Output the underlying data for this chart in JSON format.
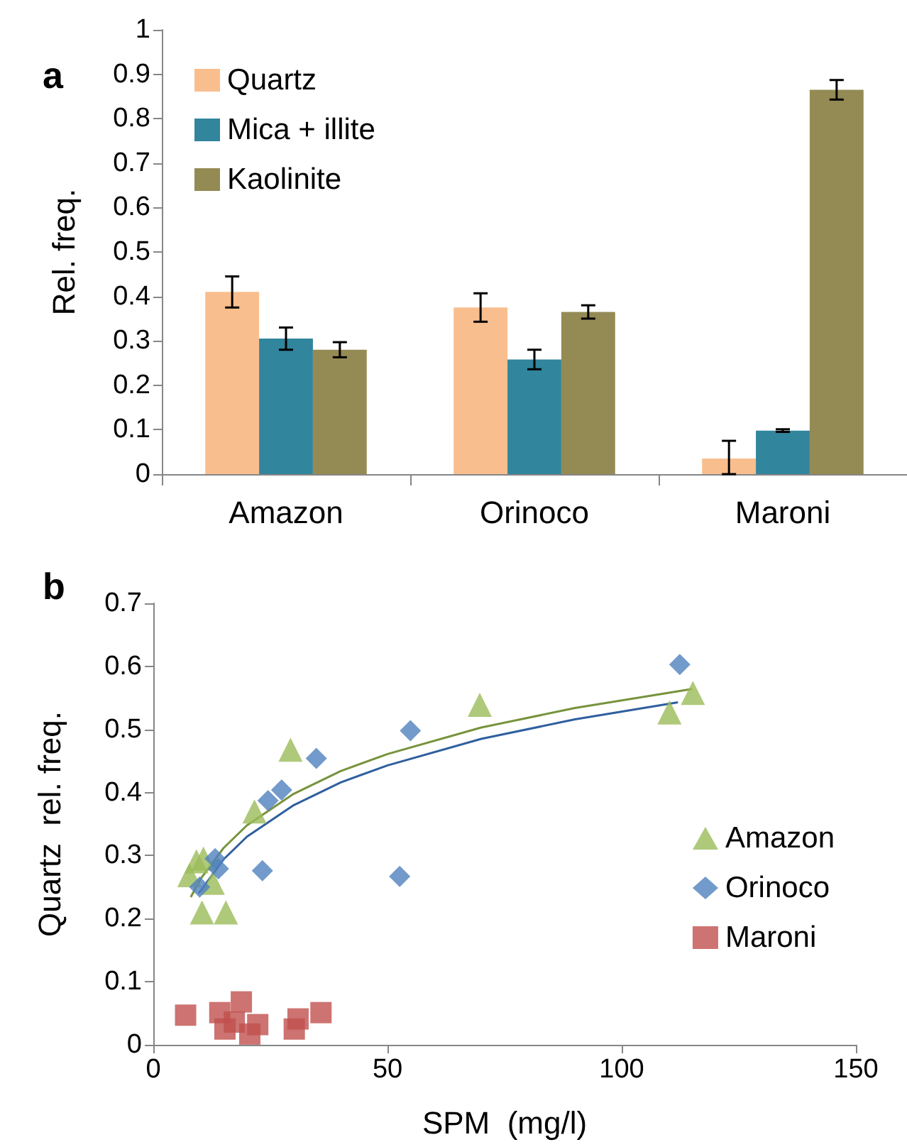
{
  "chart_data": [
    {
      "type": "bar",
      "annotations": [
        "a"
      ],
      "ylabel": "Rel. freq.",
      "categories": [
        "Amazon",
        "Orinoco",
        "Maroni"
      ],
      "ylim": [
        0,
        1
      ],
      "yticks": [
        0,
        0.1,
        0.2,
        0.3,
        0.4,
        0.5,
        0.6,
        0.7,
        0.8,
        0.9,
        1
      ],
      "grid": false,
      "legend": "top left",
      "series": [
        {
          "name": "Quartz",
          "color": "#f9be8d",
          "values": [
            0.41,
            0.375,
            0.035
          ],
          "errors": [
            0.035,
            0.032,
            [
              0,
              0.075
            ]
          ]
        },
        {
          "name": "Mica + illite",
          "color": "#31859c",
          "values": [
            0.305,
            0.258,
            0.098
          ],
          "errors": [
            0.025,
            0.022,
            0.003
          ]
        },
        {
          "name": "Kaolinite",
          "color": "#948a54",
          "values": [
            0.28,
            0.365,
            0.865
          ],
          "errors": [
            0.017,
            0.015,
            0.022
          ]
        }
      ]
    },
    {
      "type": "scatter",
      "annotations": [
        "b"
      ],
      "xlabel": "SPM  (mg/l)",
      "ylabel": "Quartz  rel. freq.",
      "xlim": [
        0,
        150
      ],
      "xticks": [
        0,
        50,
        100,
        150
      ],
      "ylim": [
        0,
        0.7
      ],
      "yticks": [
        0,
        0.1,
        0.2,
        0.3,
        0.4,
        0.5,
        0.6,
        0.7
      ],
      "grid": false,
      "legend": "bottom right",
      "series": [
        {
          "name": "Amazon",
          "color": "#9bbb59",
          "marker": "triangle",
          "x": [
            7.7,
            9.2,
            10.7,
            12.7,
            10.4,
            15.5,
            21.6,
            29.3,
            69.7,
            110.2,
            115.2
          ],
          "values": [
            0.269,
            0.291,
            0.295,
            0.257,
            0.21,
            0.21,
            0.37,
            0.468,
            0.539,
            0.527,
            0.558
          ]
        },
        {
          "name": "Orinoco",
          "color": "#4f81bd",
          "marker": "diamond",
          "x": [
            9.9,
            13.2,
            13.9,
            23.3,
            24.5,
            27.4,
            34.8,
            52.6,
            54.9,
            112.4
          ],
          "values": [
            0.25,
            0.295,
            0.279,
            0.276,
            0.387,
            0.404,
            0.454,
            0.267,
            0.498,
            0.603
          ]
        },
        {
          "name": "Maroni",
          "color": "#c0504d",
          "marker": "square",
          "x": [
            6.9,
            14.2,
            18.8,
            15.3,
            17.3,
            20.6,
            22.3,
            30.1,
            30.9,
            35.8
          ],
          "values": [
            0.047,
            0.051,
            0.068,
            0.025,
            0.036,
            0.017,
            0.032,
            0.025,
            0.041,
            0.051
          ]
        },
        {
          "type": "line",
          "color": "#77933c",
          "marker": "none",
          "x": [
            8,
            10,
            15,
            20,
            30,
            40,
            50,
            70,
            90,
            115
          ],
          "values": [
            0.234,
            0.262,
            0.312,
            0.348,
            0.398,
            0.434,
            0.461,
            0.503,
            0.534,
            0.564
          ]
        },
        {
          "type": "line",
          "color": "#2e5f9e",
          "marker": "none",
          "x": [
            9.7,
            15,
            20,
            30,
            40,
            50,
            70,
            90,
            112
          ],
          "values": [
            0.24,
            0.294,
            0.33,
            0.38,
            0.416,
            0.443,
            0.485,
            0.516,
            0.543
          ]
        }
      ]
    }
  ]
}
